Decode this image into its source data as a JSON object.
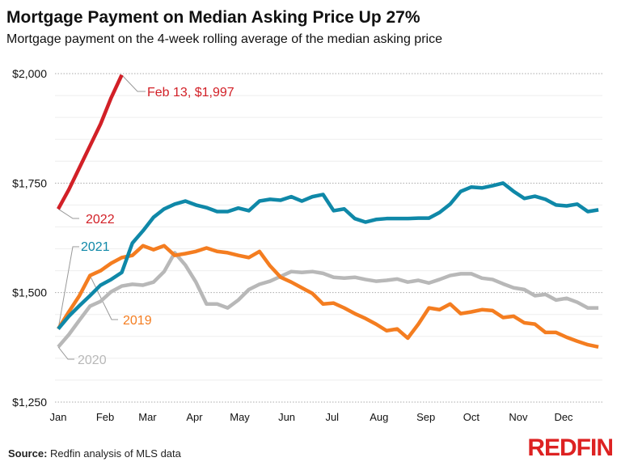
{
  "title": "Mortgage Payment on Median Asking Price Up 27%",
  "subtitle": "Mortgage payment on the 4-week rolling average of the median asking price",
  "source_label": "Source:",
  "source_text": " Redfin analysis of MLS data",
  "logo": "REDFIN",
  "chart_data": {
    "type": "line",
    "title": "Mortgage Payment on Median Asking Price Up 27%",
    "subtitle": "Mortgage payment on the 4-week rolling average of the median asking price",
    "ylim": [
      1250,
      2000
    ],
    "y_ticks": [
      1250,
      1500,
      1750,
      2000
    ],
    "y_tick_labels": [
      "$1,250",
      "$1,500",
      "$1,750",
      "$2,000"
    ],
    "x_tick_labels": [
      "Jan",
      "Feb",
      "Mar",
      "Apr",
      "May",
      "Jun",
      "Jul",
      "Aug",
      "Sep",
      "Oct",
      "Nov",
      "Dec"
    ],
    "x_unit": "week",
    "grid": true,
    "annotation": "Feb 13, $1,997",
    "series": [
      {
        "name": "2020",
        "color": "#b8b8b8",
        "values": [
          1376,
          1404,
          1437,
          1469,
          1480,
          1502,
          1515,
          1519,
          1517,
          1524,
          1548,
          1591,
          1563,
          1524,
          1474,
          1474,
          1465,
          1483,
          1507,
          1519,
          1526,
          1537,
          1548,
          1546,
          1548,
          1544,
          1535,
          1533,
          1535,
          1530,
          1526,
          1528,
          1531,
          1524,
          1528,
          1522,
          1530,
          1539,
          1543,
          1543,
          1533,
          1530,
          1520,
          1511,
          1507,
          1493,
          1496,
          1483,
          1487,
          1478,
          1465,
          1465
        ]
      },
      {
        "name": "2019",
        "color": "#f47d20",
        "values": [
          1417,
          1456,
          1493,
          1539,
          1550,
          1567,
          1580,
          1585,
          1607,
          1598,
          1607,
          1585,
          1589,
          1594,
          1602,
          1594,
          1591,
          1585,
          1580,
          1594,
          1561,
          1535,
          1524,
          1511,
          1498,
          1474,
          1476,
          1465,
          1452,
          1441,
          1428,
          1413,
          1417,
          1396,
          1428,
          1465,
          1461,
          1474,
          1452,
          1456,
          1461,
          1459,
          1443,
          1446,
          1431,
          1428,
          1409,
          1409,
          1398,
          1389,
          1381,
          1376
        ]
      },
      {
        "name": "2021",
        "color": "#0f88a8",
        "values": [
          1417,
          1446,
          1470,
          1493,
          1517,
          1530,
          1546,
          1613,
          1641,
          1672,
          1691,
          1702,
          1709,
          1700,
          1694,
          1685,
          1685,
          1693,
          1687,
          1709,
          1713,
          1711,
          1719,
          1709,
          1719,
          1724,
          1687,
          1691,
          1669,
          1661,
          1667,
          1669,
          1669,
          1669,
          1670,
          1670,
          1683,
          1702,
          1731,
          1741,
          1739,
          1744,
          1750,
          1731,
          1715,
          1720,
          1713,
          1700,
          1698,
          1702,
          1685,
          1689
        ]
      },
      {
        "name": "2022",
        "color": "#d22027",
        "values": [
          1691,
          1735,
          1785,
          1835,
          1885,
          1945,
          1997
        ]
      }
    ]
  }
}
